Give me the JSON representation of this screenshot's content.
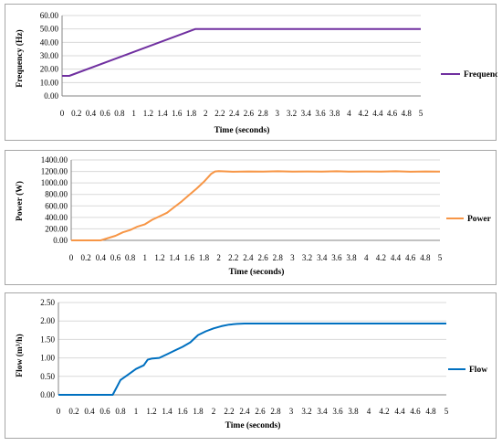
{
  "chart_data": [
    {
      "type": "line",
      "xlabel": "Time (seconds)",
      "ylabel": "Frequency (Hz)",
      "legend": "right",
      "grid": true,
      "ylim": [
        0,
        60
      ],
      "yticks": [
        "0.00",
        "10.00",
        "20.00",
        "30.00",
        "40.00",
        "50.00",
        "60.00"
      ],
      "xticks": [
        "0",
        "0.2",
        "0.4",
        "0.6",
        "0.8",
        "1",
        "1.2",
        "1.4",
        "1.6",
        "1.8",
        "2",
        "2.2",
        "2.4",
        "2.6",
        "2.8",
        "3",
        "3.2",
        "3.4",
        "3.6",
        "3.8",
        "4",
        "4.2",
        "4.4",
        "4.6",
        "4.8",
        "5"
      ],
      "color": "#7030a0",
      "series": [
        {
          "name": "Frequency",
          "x": [
            0,
            0.1,
            1.86,
            2.0,
            2.5,
            3.0,
            3.5,
            4.0,
            4.5,
            5.0
          ],
          "y": [
            15,
            15,
            50,
            50,
            50,
            50,
            50,
            50,
            50,
            50
          ]
        }
      ]
    },
    {
      "type": "line",
      "xlabel": "Time (seconds)",
      "ylabel": "Power (W)",
      "legend": "right",
      "grid": true,
      "ylim": [
        0,
        1400
      ],
      "yticks": [
        "0.00",
        "200.00",
        "400.00",
        "600.00",
        "800.00",
        "1000.00",
        "1200.00",
        "1400.00"
      ],
      "xticks": [
        "0",
        "0.2",
        "0.4",
        "0.6",
        "0.8",
        "1",
        "1.2",
        "1.4",
        "1.6",
        "1.8",
        "2",
        "2.2",
        "2.4",
        "2.6",
        "2.8",
        "3",
        "3.2",
        "3.4",
        "3.6",
        "3.8",
        "4",
        "4.2",
        "4.4",
        "4.6",
        "4.8",
        "5"
      ],
      "color": "#f79646",
      "series": [
        {
          "name": "Power",
          "x": [
            0,
            0.4,
            0.5,
            0.6,
            0.7,
            0.8,
            0.9,
            1.0,
            1.1,
            1.2,
            1.3,
            1.4,
            1.5,
            1.6,
            1.7,
            1.8,
            1.9,
            1.95,
            2.0,
            2.2,
            2.4,
            2.6,
            2.8,
            3.0,
            3.2,
            3.4,
            3.6,
            3.8,
            4.0,
            4.2,
            4.4,
            4.6,
            4.8,
            5.0
          ],
          "y": [
            0,
            0,
            40,
            80,
            140,
            180,
            240,
            280,
            360,
            420,
            480,
            580,
            680,
            790,
            900,
            1020,
            1160,
            1200,
            1205,
            1195,
            1200,
            1198,
            1202,
            1196,
            1200,
            1198,
            1203,
            1196,
            1200,
            1198,
            1203,
            1195,
            1200,
            1198
          ]
        }
      ]
    },
    {
      "type": "line",
      "xlabel": "Time (seconds)",
      "ylabel": "Flow (m³/h)",
      "legend": "right",
      "grid": true,
      "ylim": [
        0,
        2.5
      ],
      "yticks": [
        "0.00",
        "0.50",
        "1.00",
        "1.50",
        "2.00",
        "2.50"
      ],
      "xticks": [
        "0",
        "0.2",
        "0.4",
        "0.6",
        "0.8",
        "1",
        "1.2",
        "1.4",
        "1.6",
        "1.8",
        "2",
        "2.2",
        "2.4",
        "2.6",
        "2.8",
        "3",
        "3.2",
        "3.4",
        "3.6",
        "3.8",
        "4",
        "4.2",
        "4.4",
        "4.6",
        "4.8",
        "5"
      ],
      "color": "#0070c0",
      "series": [
        {
          "name": "Flow",
          "x": [
            0,
            0.7,
            0.75,
            0.8,
            0.9,
            1.0,
            1.1,
            1.15,
            1.2,
            1.3,
            1.4,
            1.5,
            1.6,
            1.7,
            1.8,
            1.9,
            2.0,
            2.1,
            2.2,
            2.3,
            2.4,
            2.6,
            2.8,
            3.0,
            3.5,
            4.0,
            4.5,
            5.0
          ],
          "y": [
            0,
            0,
            0.2,
            0.4,
            0.55,
            0.7,
            0.8,
            0.95,
            0.98,
            1.0,
            1.1,
            1.2,
            1.3,
            1.42,
            1.62,
            1.72,
            1.8,
            1.86,
            1.9,
            1.92,
            1.93,
            1.93,
            1.93,
            1.93,
            1.93,
            1.93,
            1.93,
            1.93
          ]
        }
      ]
    }
  ]
}
